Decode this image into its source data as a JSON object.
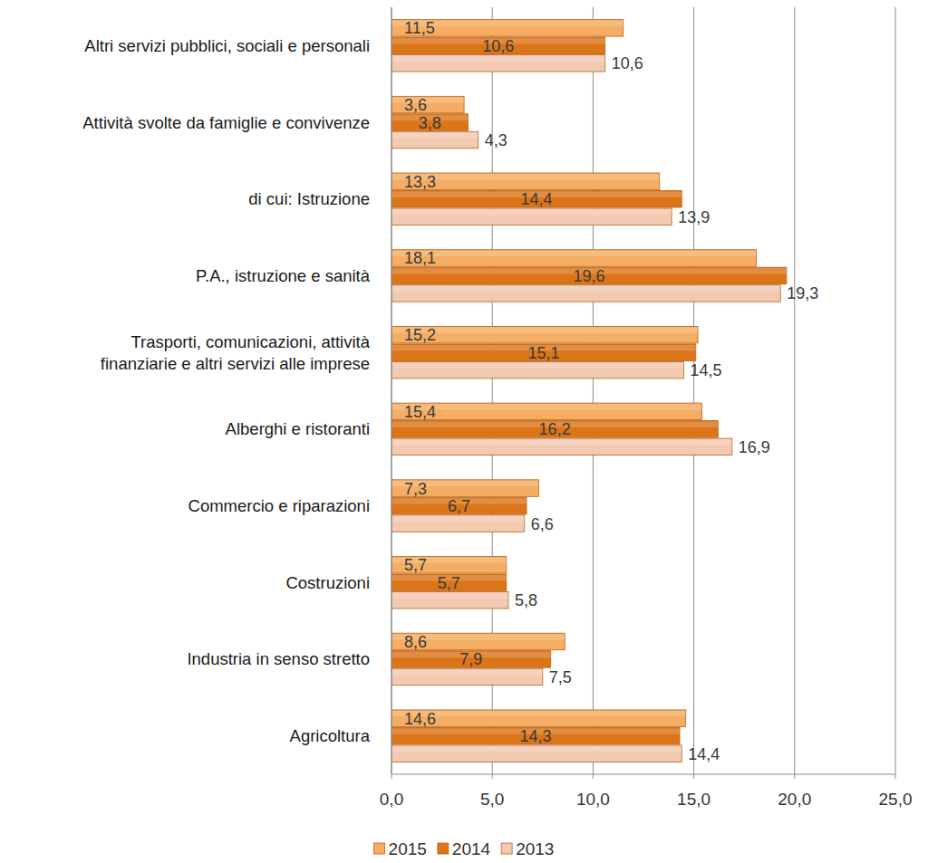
{
  "chart_data": {
    "type": "bar",
    "orientation": "horizontal",
    "categories": [
      "Altri servizi pubblici, sociali e personali",
      "Attività svolte da famiglie e convivenze",
      "di cui: Istruzione",
      "P.A., istruzione e sanità",
      "Trasporti, comunicazioni, attività finanziarie e altri servizi alle imprese",
      "Alberghi e ristoranti",
      "Commercio e riparazioni",
      "Costruzioni",
      "Industria in senso stretto",
      "Agricoltura"
    ],
    "series": [
      {
        "name": "2015",
        "color": "#f4ad62",
        "values": [
          11.5,
          3.6,
          13.3,
          18.1,
          15.2,
          15.4,
          7.3,
          5.7,
          8.6,
          14.6
        ],
        "value_labels": [
          "11,5",
          "3,6",
          "13,3",
          "18,1",
          "15,2",
          "15,4",
          "7,3",
          "5,7",
          "8,6",
          "14,6"
        ]
      },
      {
        "name": "2014",
        "color": "#dc7418",
        "values": [
          10.6,
          3.8,
          14.4,
          19.6,
          15.1,
          16.2,
          6.7,
          5.7,
          7.9,
          14.3
        ],
        "value_labels": [
          "10,6",
          "3,8",
          "14,4",
          "19,6",
          "15,1",
          "16,2",
          "6,7",
          "5,7",
          "7,9",
          "14,3"
        ]
      },
      {
        "name": "2013",
        "color": "#f2c9b1",
        "values": [
          10.6,
          4.3,
          13.9,
          19.3,
          14.5,
          16.9,
          6.6,
          5.8,
          7.5,
          14.4
        ],
        "value_labels": [
          "10,6",
          "4,3",
          "13,9",
          "19,3",
          "14,5",
          "16,9",
          "6,6",
          "5,8",
          "7,5",
          "14,4"
        ]
      }
    ],
    "xlim": [
      0,
      25
    ],
    "xticks": [
      {
        "value": 0,
        "label": "0,0"
      },
      {
        "value": 5,
        "label": "5,0"
      },
      {
        "value": 10,
        "label": "10,0"
      },
      {
        "value": 15,
        "label": "15,0"
      },
      {
        "value": 20,
        "label": "20,0"
      },
      {
        "value": 25,
        "label": "25,0"
      }
    ],
    "grid": true,
    "data_labels": true,
    "legend": "bottom"
  }
}
